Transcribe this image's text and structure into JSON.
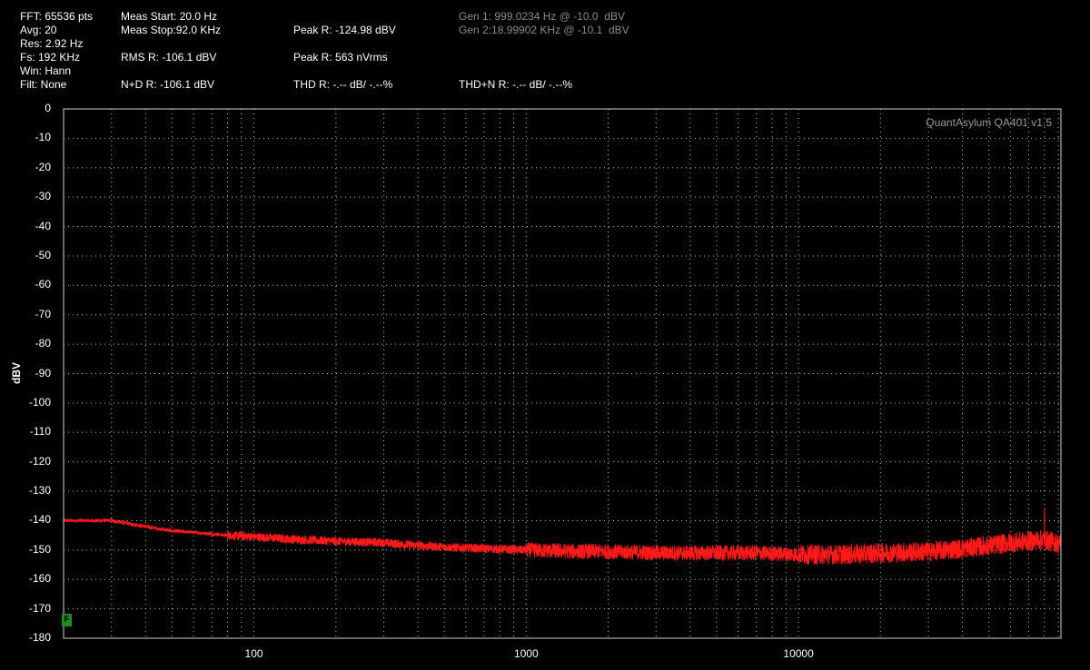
{
  "header": {
    "fft": "FFT: 65536 pts",
    "avg": "Avg: 20",
    "res": "Res: 2.92 Hz",
    "fs": "Fs: 192 KHz",
    "win": "Win: Hann",
    "filt": "Filt: None",
    "meas_start": "Meas Start: 20.0 Hz",
    "meas_stop": "Meas Stop:92.0 KHz",
    "rms": "RMS R: -106.1 dBV",
    "nd": "N+D R: -106.1 dBV",
    "peak_dbv": "Peak R: -124.98 dBV",
    "peak_nv": "Peak R: 563 nVrms",
    "thd": "THD R: -.-- dB/ -.--%",
    "thdn": "THD+N R: -.-- dB/ -.--%",
    "gen1": "Gen 1: 999.0234 Hz @ -10.0  dBV",
    "gen2": "Gen 2:18.99902 KHz @ -10.1  dBV"
  },
  "watermark": "QuantAsylum QA401 v1.5",
  "f_badge": "F",
  "colors": {
    "trace": "#ff1a1a",
    "background": "#000000",
    "grid": "#bbbbbb",
    "gen_text": "#8a8a8a"
  },
  "chart_data": {
    "type": "line",
    "title": "",
    "xlabel": "",
    "ylabel": "dBV",
    "x_scale": "log",
    "xlim": [
      20,
      92000
    ],
    "ylim": [
      -180,
      0
    ],
    "x_ticks": [
      "100",
      "1000",
      "10000"
    ],
    "y_ticks": [
      "0",
      "-10",
      "-20",
      "-30",
      "-40",
      "-50",
      "-60",
      "-70",
      "-80",
      "-90",
      "-100",
      "-110",
      "-120",
      "-130",
      "-140",
      "-150",
      "-160",
      "-170",
      "-180"
    ],
    "grid": true,
    "series": [
      {
        "color": "#ff1a1a",
        "x": [
          20,
          30,
          40,
          50,
          60,
          70,
          80,
          100,
          150,
          200,
          300,
          400,
          500,
          700,
          1000,
          1500,
          2000,
          3000,
          5000,
          7000,
          10000,
          15000,
          20000,
          30000,
          40000,
          50000,
          60000,
          70000,
          80000,
          92000
        ],
        "values": [
          -140,
          -140,
          -142,
          -143.5,
          -144,
          -144.5,
          -145,
          -145.5,
          -146.5,
          -147,
          -147.5,
          -148.5,
          -149,
          -149.5,
          -150,
          -150.5,
          -150.5,
          -151,
          -151,
          -151,
          -151.5,
          -151.5,
          -151,
          -150.5,
          -149.5,
          -148.5,
          -147.5,
          -147,
          -146.5,
          -148
        ]
      }
    ],
    "annotations": [
      {
        "x": 80000,
        "y": -136,
        "text": ""
      }
    ]
  }
}
